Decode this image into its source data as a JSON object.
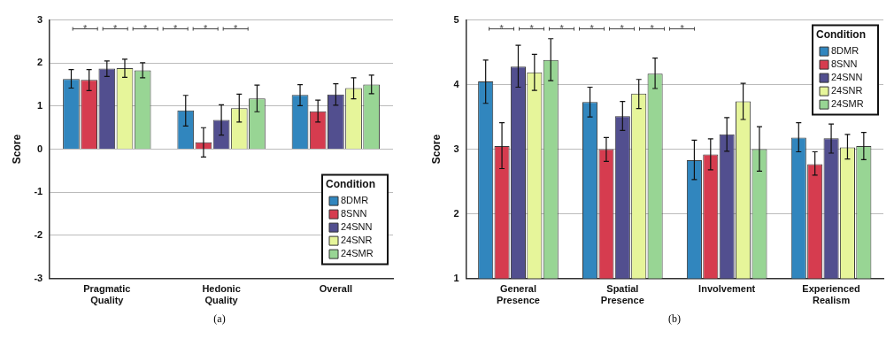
{
  "chart_data": [
    {
      "type": "bar",
      "ylabel": "Score",
      "xlabel": "(a)",
      "categories": [
        "Pragmatic Quality",
        "Hedonic Quality",
        "Overall"
      ],
      "legend_title": "Condition",
      "legend": "bottom right",
      "grid": "y",
      "ylim": [
        -3,
        3
      ],
      "yticks": [
        -3,
        -2,
        -1,
        0,
        1,
        2,
        3
      ],
      "series": [
        {
          "name": "8DMR",
          "color": "#3186be",
          "values": [
            1.63,
            0.9,
            1.26
          ],
          "errors": [
            [
              1.42,
              1.85
            ],
            [
              0.54,
              1.25
            ],
            [
              1.01,
              1.5
            ]
          ]
        },
        {
          "name": "8SNN",
          "color": "#d63c4f",
          "values": [
            1.61,
            0.16,
            0.88
          ],
          "errors": [
            [
              1.36,
              1.85
            ],
            [
              -0.18,
              0.5
            ],
            [
              0.63,
              1.14
            ]
          ]
        },
        {
          "name": "24SNN",
          "color": "#524f8f",
          "values": [
            1.87,
            0.68,
            1.27
          ],
          "errors": [
            [
              1.69,
              2.05
            ],
            [
              0.33,
              1.03
            ],
            [
              1.02,
              1.52
            ]
          ]
        },
        {
          "name": "24SNR",
          "color": "#e6f59a",
          "values": [
            1.88,
            0.95,
            1.42
          ],
          "errors": [
            [
              1.67,
              2.09
            ],
            [
              0.63,
              1.28
            ],
            [
              1.17,
              1.66
            ]
          ]
        },
        {
          "name": "24SMR",
          "color": "#98d594",
          "values": [
            1.83,
            1.18,
            1.5
          ],
          "errors": [
            [
              1.66,
              2.01
            ],
            [
              0.87,
              1.49
            ],
            [
              1.29,
              1.72
            ]
          ]
        }
      ],
      "annotations": [
        "*",
        "*",
        "*",
        "*",
        "*",
        "*"
      ]
    },
    {
      "type": "bar",
      "ylabel": "Score",
      "xlabel": "(b)",
      "categories": [
        "General Presence",
        "Spatial Presence",
        "Involvement",
        "Experienced Realism"
      ],
      "legend_title": "Condition",
      "legend": "top right",
      "grid": "y",
      "ylim": [
        1,
        5
      ],
      "yticks": [
        1,
        2,
        3,
        4,
        5
      ],
      "series": [
        {
          "name": "8DMR",
          "color": "#3186be",
          "values": [
            4.05,
            3.73,
            2.83,
            3.18
          ],
          "errors": [
            [
              3.71,
              4.38
            ],
            [
              3.5,
              3.96
            ],
            [
              2.53,
              3.14
            ],
            [
              2.96,
              3.41
            ]
          ]
        },
        {
          "name": "8SNN",
          "color": "#d63c4f",
          "values": [
            3.05,
            3.0,
            2.92,
            2.77
          ],
          "errors": [
            [
              2.7,
              3.41
            ],
            [
              2.81,
              3.18
            ],
            [
              2.68,
              3.16
            ],
            [
              2.6,
              2.96
            ]
          ]
        },
        {
          "name": "24SNN",
          "color": "#524f8f",
          "values": [
            4.28,
            3.51,
            3.23,
            3.17
          ],
          "errors": [
            [
              3.96,
              4.61
            ],
            [
              3.29,
              3.74
            ],
            [
              2.97,
              3.49
            ],
            [
              2.94,
              3.39
            ]
          ]
        },
        {
          "name": "24SNR",
          "color": "#e6f59a",
          "values": [
            4.19,
            3.86,
            3.74,
            3.03
          ],
          "errors": [
            [
              3.91,
              4.47
            ],
            [
              3.63,
              4.08
            ],
            [
              3.46,
              4.02
            ],
            [
              2.85,
              3.23
            ]
          ]
        },
        {
          "name": "24SMR",
          "color": "#98d594",
          "values": [
            4.38,
            4.17,
            3.0,
            3.05
          ],
          "errors": [
            [
              4.06,
              4.71
            ],
            [
              3.94,
              4.41
            ],
            [
              2.66,
              3.35
            ],
            [
              2.84,
              3.26
            ]
          ]
        }
      ],
      "annotations": [
        "*",
        "*",
        "*",
        "*",
        "*",
        "*",
        "*"
      ]
    }
  ]
}
